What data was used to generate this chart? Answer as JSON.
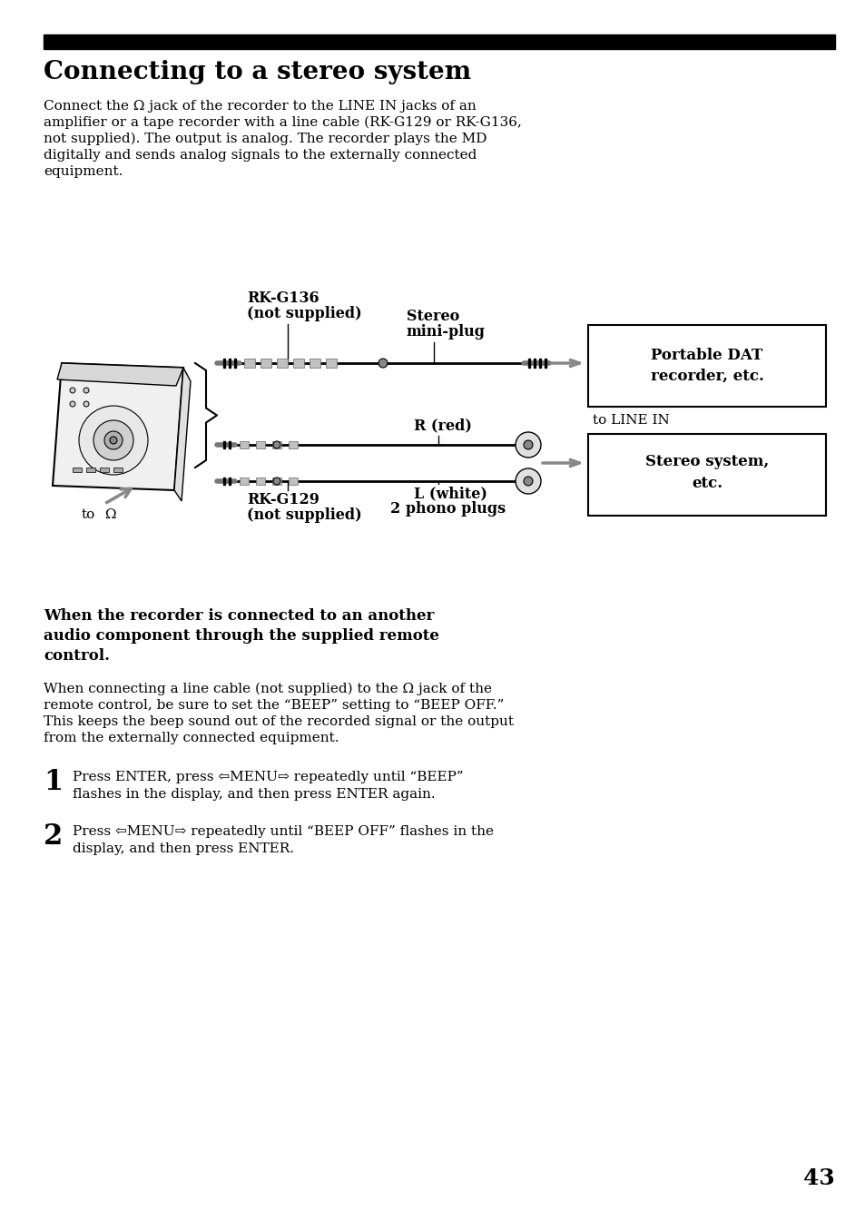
{
  "bg_color": "#ffffff",
  "title_bar_color": "#000000",
  "title_text": "Connecting to a stereo system",
  "title_fontsize": 20,
  "body_fontsize": 11,
  "label_fontsize": 11,
  "bold_label_fontsize": 11.5,
  "page_number": "43",
  "paragraph1_line1": "Connect the Ω jack of the recorder to the LINE IN jacks of an",
  "paragraph1_line2": "amplifier or a tape recorder with a line cable (RK-G129 or RK-G136,",
  "paragraph1_line3": "not supplied). The output is analog. The recorder plays the MD",
  "paragraph1_line4": "digitally and sends analog signals to the externally connected",
  "paragraph1_line5": "equipment.",
  "subheading_line1": "When the recorder is connected to an another",
  "subheading_line2": "audio component through the supplied remote",
  "subheading_line3": "control.",
  "paragraph2_line1": "When connecting a line cable (not supplied) to the Ω jack of the",
  "paragraph2_line2": "remote control, be sure to set the “BEEP” setting to “BEEP OFF.”",
  "paragraph2_line3": "This keeps the beep sound out of the recorded signal or the output",
  "paragraph2_line4": "from the externally connected equipment.",
  "step1_text": "Press ENTER, press ⇦MENU⇨ repeatedly until “BEEP”\nflashes in the display, and then press ENTER again.",
  "step2_text": "Press ⇦MENU⇨ repeatedly until “BEEP OFF” flashes in the\ndisplay, and then press ENTER.",
  "label_rkg136": "RK-G136",
  "label_rkg136_2": "(not supplied)",
  "label_stereo_mini_1": "Stereo",
  "label_stereo_mini_2": "mini-plug",
  "label_rkg129": "RK-G129",
  "label_rkg129_2": "(not supplied)",
  "label_r_red": "R (red)",
  "label_l_white": "L (white)",
  "label_2_phono": "2 phono plugs",
  "label_to_line_in": "to LINE IN",
  "label_to_hp": "to",
  "box1_line1": "Portable DAT",
  "box1_line2": "recorder, etc.",
  "box2_line1": "Stereo system,",
  "box2_line2": "etc.",
  "gray_color": "#888888",
  "line_color": "#000000"
}
